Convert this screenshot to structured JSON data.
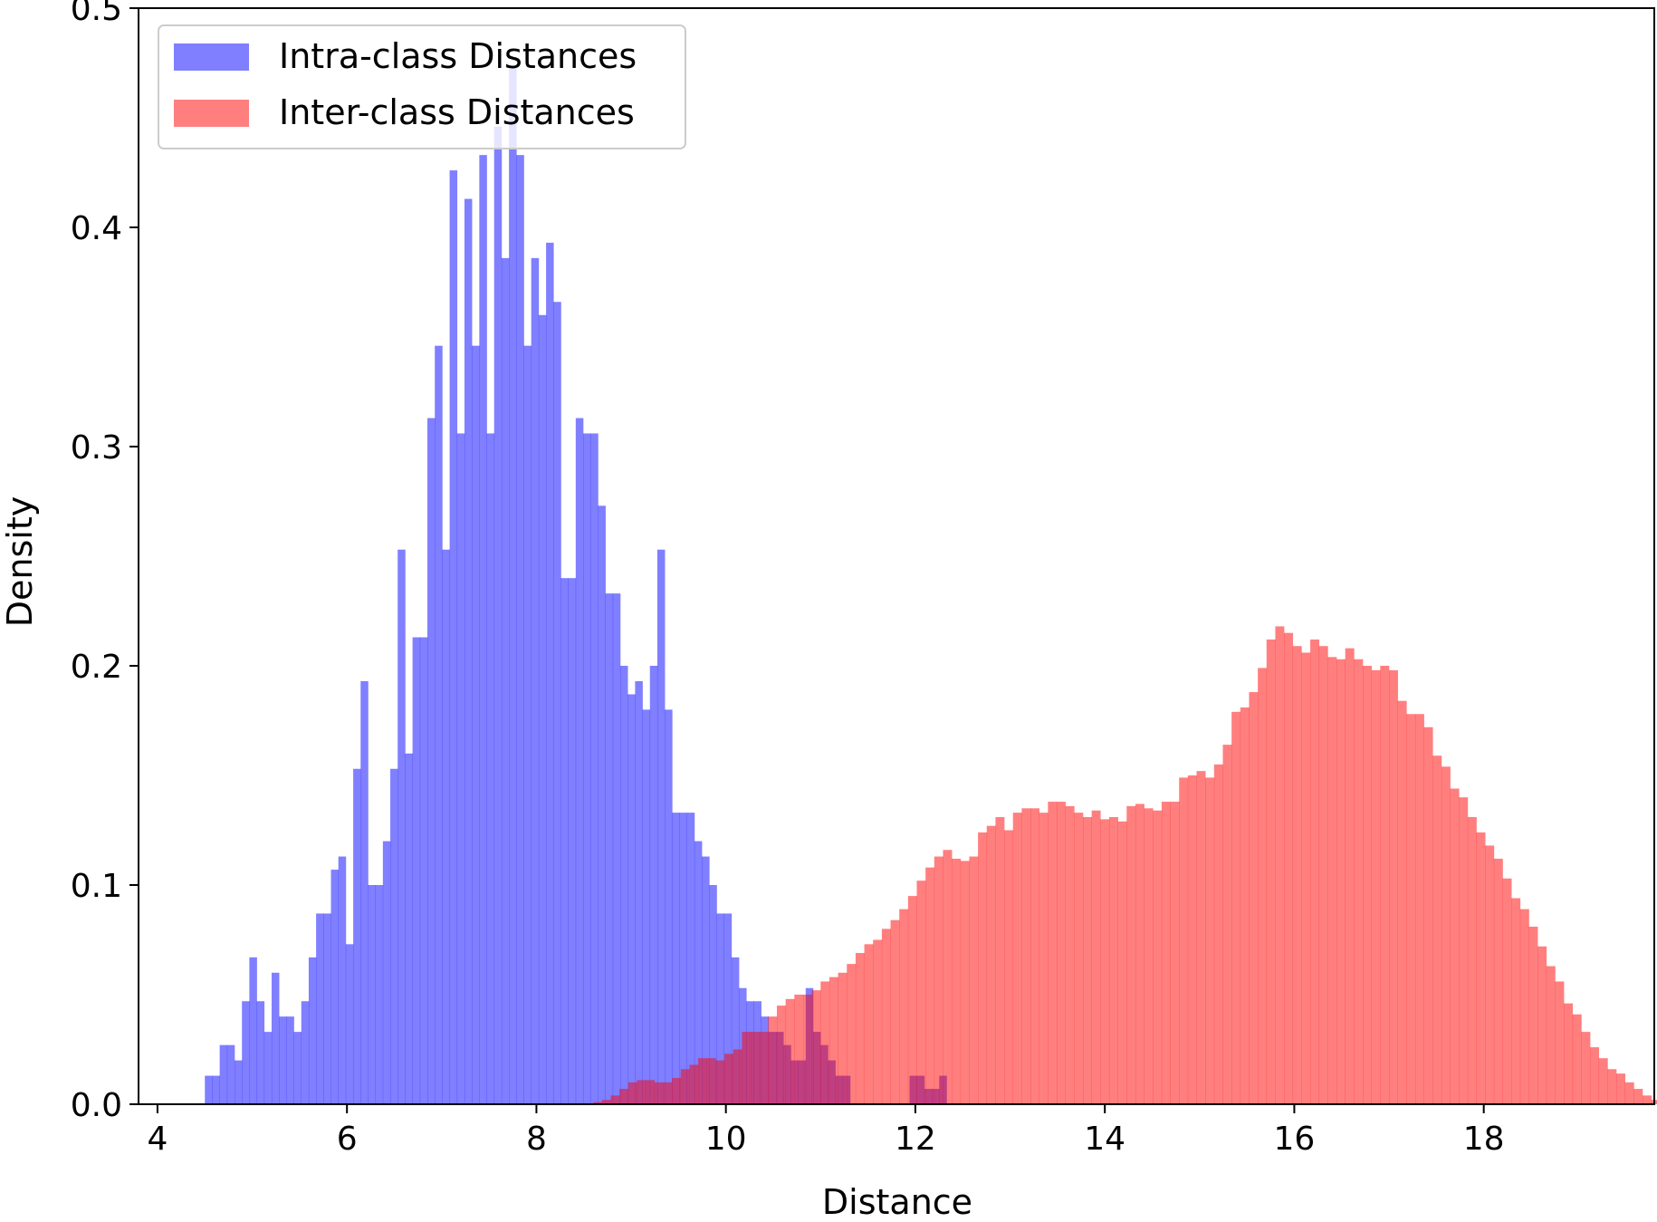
{
  "chart_data": {
    "type": "histogram",
    "title": "",
    "xlabel": "Distance",
    "ylabel": "Density",
    "xlim": [
      3.8,
      19.8
    ],
    "ylim": [
      0,
      0.5
    ],
    "xticks": [
      4,
      6,
      8,
      10,
      12,
      14,
      16,
      18
    ],
    "yticks": [
      0.0,
      0.1,
      0.2,
      0.3,
      0.4,
      0.5
    ],
    "xtick_labels": [
      "4",
      "6",
      "8",
      "10",
      "12",
      "14",
      "16",
      "18"
    ],
    "ytick_labels": [
      "0.0",
      "0.1",
      "0.2",
      "0.3",
      "0.4",
      "0.5"
    ],
    "grid": false,
    "legend_position": "upper-left",
    "series": [
      {
        "name": "Intra-class Distances",
        "color": "#0000ff",
        "opacity": 0.5,
        "bin_start": 4.5,
        "bin_width": 0.0783,
        "density": [
          0.013,
          0.013,
          0.027,
          0.027,
          0.02,
          0.047,
          0.067,
          0.047,
          0.033,
          0.06,
          0.04,
          0.04,
          0.033,
          0.047,
          0.067,
          0.087,
          0.087,
          0.107,
          0.113,
          0.073,
          0.153,
          0.193,
          0.1,
          0.1,
          0.12,
          0.153,
          0.253,
          0.16,
          0.213,
          0.213,
          0.313,
          0.346,
          0.253,
          0.426,
          0.306,
          0.413,
          0.346,
          0.433,
          0.306,
          0.446,
          0.386,
          0.473,
          0.433,
          0.346,
          0.386,
          0.36,
          0.393,
          0.366,
          0.24,
          0.24,
          0.313,
          0.306,
          0.306,
          0.273,
          0.233,
          0.233,
          0.2,
          0.187,
          0.193,
          0.18,
          0.2,
          0.253,
          0.18,
          0.133,
          0.133,
          0.133,
          0.12,
          0.113,
          0.1,
          0.087,
          0.087,
          0.067,
          0.053,
          0.047,
          0.047,
          0.04,
          0.033,
          0.033,
          0.027,
          0.02,
          0.02,
          0.053,
          0.033,
          0.027,
          0.02,
          0.013,
          0.013,
          0.0,
          0.0,
          0.0,
          0.0,
          0.0,
          0.0,
          0.0,
          0.0,
          0.013,
          0.013,
          0.007,
          0.007,
          0.013
        ]
      },
      {
        "name": "Inter-class Distances",
        "color": "#ff0000",
        "opacity": 0.5,
        "bin_start": 8.6,
        "bin_width": 0.0923,
        "density": [
          0.001,
          0.002,
          0.004,
          0.007,
          0.01,
          0.011,
          0.011,
          0.01,
          0.01,
          0.012,
          0.016,
          0.018,
          0.021,
          0.021,
          0.02,
          0.023,
          0.025,
          0.033,
          0.033,
          0.033,
          0.04,
          0.045,
          0.048,
          0.05,
          0.05,
          0.052,
          0.056,
          0.058,
          0.06,
          0.064,
          0.069,
          0.073,
          0.075,
          0.08,
          0.084,
          0.089,
          0.095,
          0.102,
          0.108,
          0.113,
          0.116,
          0.112,
          0.111,
          0.113,
          0.124,
          0.127,
          0.131,
          0.125,
          0.133,
          0.135,
          0.135,
          0.133,
          0.138,
          0.138,
          0.136,
          0.133,
          0.131,
          0.134,
          0.13,
          0.131,
          0.129,
          0.136,
          0.137,
          0.135,
          0.134,
          0.138,
          0.138,
          0.149,
          0.15,
          0.152,
          0.149,
          0.155,
          0.164,
          0.179,
          0.181,
          0.188,
          0.199,
          0.212,
          0.218,
          0.215,
          0.209,
          0.206,
          0.212,
          0.209,
          0.204,
          0.203,
          0.208,
          0.203,
          0.2,
          0.198,
          0.2,
          0.198,
          0.184,
          0.178,
          0.178,
          0.172,
          0.159,
          0.154,
          0.144,
          0.14,
          0.131,
          0.124,
          0.118,
          0.112,
          0.103,
          0.094,
          0.089,
          0.081,
          0.072,
          0.063,
          0.056,
          0.046,
          0.041,
          0.033,
          0.026,
          0.021,
          0.016,
          0.014,
          0.01,
          0.007,
          0.004,
          0.002,
          0.001
        ]
      }
    ]
  }
}
